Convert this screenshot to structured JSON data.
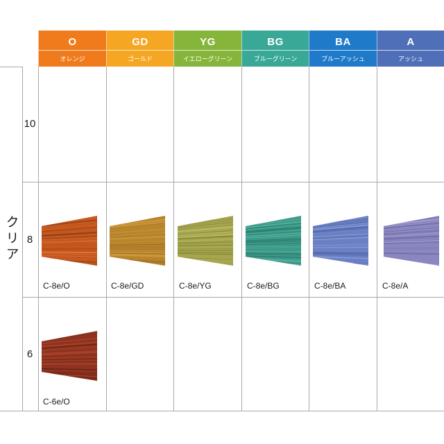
{
  "series": {
    "label": "クリア"
  },
  "columns": [
    {
      "code": "O",
      "name": "オレンジ",
      "color": "#f07b1d"
    },
    {
      "code": "GD",
      "name": "ゴールド",
      "color": "#f5a623"
    },
    {
      "code": "YG",
      "name": "イエローグリーン",
      "color": "#86b53b"
    },
    {
      "code": "BG",
      "name": "ブルーグリーン",
      "color": "#3aa897"
    },
    {
      "code": "BA",
      "name": "ブルーアッシュ",
      "color": "#1f7ac9"
    },
    {
      "code": "A",
      "name": "アッシュ",
      "color": "#4f6fb8"
    }
  ],
  "rows": [
    {
      "level": "10"
    },
    {
      "level": "8"
    },
    {
      "level": "6"
    }
  ],
  "swatches": [
    {
      "code": "C-8e/O",
      "color": "#c4571e",
      "dark": "#8e3a12",
      "light": "#e27a3a"
    },
    {
      "code": "C-8e/GD",
      "color": "#b9852c",
      "dark": "#8a5c18",
      "light": "#d6a246"
    },
    {
      "code": "C-8e/YG",
      "color": "#a6a64e",
      "dark": "#7a7e34",
      "light": "#c2c06c"
    },
    {
      "code": "C-8e/BG",
      "color": "#3d9b8b",
      "dark": "#25705f",
      "light": "#5fb9a6"
    },
    {
      "code": "C-8e/BA",
      "color": "#6b80c4",
      "dark": "#4a5e9e",
      "light": "#8ea0dc"
    },
    {
      "code": "C-8e/A",
      "color": "#8a86c0",
      "dark": "#66639a",
      "light": "#aaa6d8"
    },
    {
      "code": "C-6e/O",
      "color": "#8e3320",
      "dark": "#5e1d10",
      "light": "#b24a2c"
    }
  ]
}
